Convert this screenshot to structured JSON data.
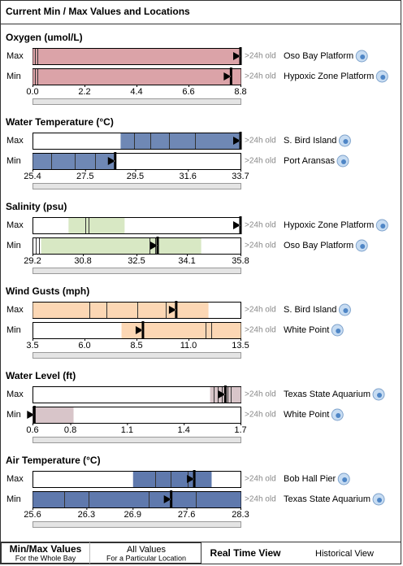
{
  "header": {
    "title": "Current Min / Max Values and Locations"
  },
  "panels": [
    {
      "title": "Oxygen (umol/L)",
      "color": "#dba3a8",
      "xlim": [
        0,
        8.8
      ],
      "ticks": [
        {
          "value": 0,
          "label": "0.0"
        },
        2.2,
        4.4,
        6.6,
        8.8
      ],
      "rows": [
        {
          "label": "Max",
          "value": 8.8,
          "range": [
            0,
            8.8
          ],
          "lines": [
            0.1,
            0.2
          ],
          "age": ">24h old",
          "location": "Oso Bay Platform"
        },
        {
          "label": "Min",
          "value": 8.4,
          "range": [
            0,
            8.8
          ],
          "lines": [
            0.1,
            0.2
          ],
          "age": ">24h old",
          "location": "Hypoxic Zone Platform"
        }
      ]
    },
    {
      "title": "Water Temperature (°C)",
      "color": "#6f88b5",
      "xlim": [
        25.4,
        33.7
      ],
      "ticks": [
        25.4,
        27.5,
        29.5,
        31.6,
        33.7
      ],
      "rows": [
        {
          "label": "Max",
          "value": 33.7,
          "range": [
            28.9,
            33.7
          ],
          "lines": [
            29.45,
            30.1,
            30.85,
            31.9
          ],
          "age": ">24h old",
          "location": "S. Bird Island"
        },
        {
          "label": "Min",
          "value": 28.7,
          "range": [
            25.4,
            28.64
          ],
          "lines": [
            26.15,
            27.1,
            27.9
          ],
          "age": ">24h old",
          "location": "Port Aransas"
        }
      ]
    },
    {
      "title": "Salinity (psu)",
      "color": "#d8e8c4",
      "xlim": [
        29.2,
        35.8
      ],
      "ticks": [
        29.2,
        30.8,
        32.5,
        34.1,
        35.8
      ],
      "rows": [
        {
          "label": "Max",
          "value": 35.8,
          "range": [
            30.33,
            32.11
          ],
          "lines": [
            30.88,
            30.98
          ],
          "age": ">24h old",
          "location": "Hypoxic Zone Platform"
        },
        {
          "label": "Min",
          "value": 33.17,
          "range": [
            29.46,
            34.54
          ],
          "lines": [
            29.3,
            29.4,
            32.9,
            33.1
          ],
          "age": ">24h old",
          "location": "Oso Bay Platform"
        }
      ]
    },
    {
      "title": "Wind Gusts (mph)",
      "color": "#fcd7b4",
      "xlim": [
        3.5,
        13.5
      ],
      "ticks": [
        3.5,
        {
          "value": 6,
          "label": "6.0"
        },
        8.5,
        {
          "value": 11,
          "label": "11.0"
        },
        13.5
      ],
      "rows": [
        {
          "label": "Max",
          "value": 10.41,
          "range": [
            3.5,
            11.94
          ],
          "lines": [
            6.23,
            7.05,
            8.54,
            9.91
          ],
          "age": ">24h old",
          "location": "S. Bird Island"
        },
        {
          "label": "Min",
          "value": 8.81,
          "range": [
            7.76,
            13.5
          ],
          "lines": [
            8.77,
            11.82,
            12.09
          ],
          "age": ">24h old",
          "location": "White Point"
        }
      ]
    },
    {
      "title": "Water Level (ft)",
      "color": "#d8c5c9",
      "xlim": [
        0.6,
        1.7
      ],
      "ticks": [
        0.6,
        0.8,
        1.1,
        1.4,
        1.7
      ],
      "rows": [
        {
          "label": "Max",
          "value": 1.62,
          "range": [
            1.537,
            1.7
          ],
          "lines": [
            1.56,
            1.58,
            1.6,
            1.63,
            1.65
          ],
          "age": ">24h old",
          "location": "Texas State Aquarium"
        },
        {
          "label": "Min",
          "value": 0.61,
          "range": [
            0.6,
            0.815
          ],
          "lines": [
            0.605
          ],
          "age": ">24h old",
          "location": "White Point"
        }
      ]
    },
    {
      "title": "Air Temperature (°C)",
      "color": "#5f79ad",
      "xlim": [
        25.6,
        28.3
      ],
      "ticks": [
        25.6,
        26.3,
        26.9,
        27.6,
        28.3
      ],
      "rows": [
        {
          "label": "Max",
          "value": 27.7,
          "range": [
            26.9,
            27.92
          ],
          "lines": [
            27.19,
            27.39,
            27.61
          ],
          "age": ">24h old",
          "location": "Bob Hall Pier"
        },
        {
          "label": "Min",
          "value": 27.4,
          "range": [
            25.6,
            28.3
          ],
          "lines": [
            26.01,
            26.33,
            27.11,
            27.72
          ],
          "age": ">24h old",
          "location": "Texas State Aquarium"
        }
      ]
    }
  ],
  "nav": [
    {
      "title": "Min/Max Values",
      "subtitle": "For the Whole Bay"
    },
    {
      "title": "All Values",
      "subtitle": "For a Particular Location"
    },
    {
      "title": "Real Time View"
    },
    {
      "title": "Historical View"
    }
  ]
}
